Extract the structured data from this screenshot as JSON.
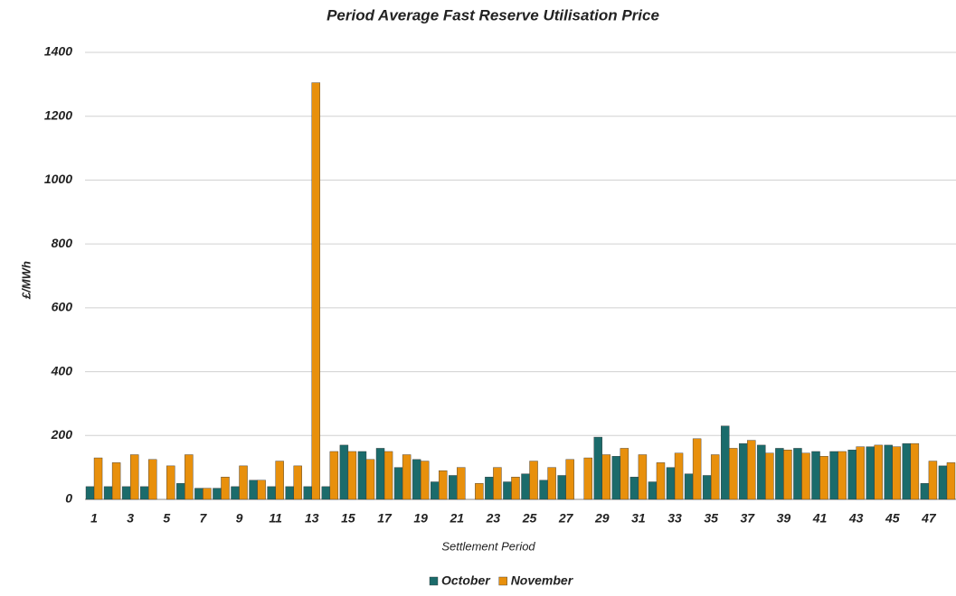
{
  "chart_data": {
    "type": "bar",
    "title": "Period Average Fast Reserve Utilisation Price",
    "x_label": "Settlement Period",
    "y_label": "£/MWh",
    "categories": [
      1,
      null,
      3,
      null,
      5,
      null,
      7,
      null,
      9,
      null,
      11,
      null,
      13,
      null,
      15,
      null,
      17,
      null,
      19,
      null,
      21,
      null,
      23,
      null,
      25,
      null,
      27,
      null,
      29,
      null,
      31,
      null,
      33,
      null,
      35,
      null,
      37,
      null,
      39,
      null,
      41,
      null,
      43,
      null,
      45,
      null,
      47,
      null
    ],
    "series": [
      {
        "name": "October",
        "color": "#1b6b6b",
        "values": [
          40,
          40,
          40,
          40,
          0,
          50,
          35,
          35,
          40,
          60,
          40,
          40,
          40,
          40,
          170,
          150,
          160,
          100,
          125,
          55,
          75,
          0,
          70,
          55,
          80,
          60,
          75,
          0,
          195,
          135,
          70,
          55,
          100,
          80,
          75,
          230,
          175,
          170,
          160,
          160,
          150,
          150,
          155,
          165,
          170,
          175,
          50,
          105
        ]
      },
      {
        "name": "November",
        "color": "#e8900c",
        "values": [
          130,
          115,
          140,
          125,
          105,
          140,
          35,
          70,
          105,
          60,
          120,
          105,
          1305,
          150,
          150,
          125,
          150,
          140,
          120,
          90,
          100,
          50,
          100,
          70,
          120,
          100,
          125,
          130,
          140,
          160,
          140,
          115,
          145,
          190,
          140,
          160,
          185,
          145,
          155,
          145,
          135,
          150,
          165,
          170,
          165,
          175,
          120,
          115
        ]
      }
    ],
    "ylim": [
      0,
      1400
    ],
    "yticks": [
      0,
      200,
      400,
      600,
      800,
      1000,
      1200,
      1400
    ],
    "grid": true,
    "legend": "bottom"
  }
}
